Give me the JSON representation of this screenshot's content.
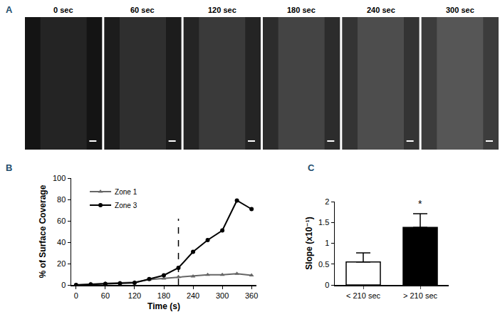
{
  "panel_labels": [
    "A",
    "B",
    "C"
  ],
  "image_panels": {
    "labels": [
      "0 sec",
      "60 sec",
      "120 sec",
      "180 sec",
      "240 sec",
      "300 sec"
    ]
  },
  "chart_data": [
    {
      "type": "line",
      "x_label": "Time (s)",
      "y_label": "% of Surface Coverage",
      "x": [
        0,
        30,
        60,
        90,
        120,
        150,
        180,
        210,
        240,
        270,
        300,
        330,
        360
      ],
      "series": [
        {
          "name": "Zone 1",
          "color": "#666666",
          "marker": "triangle-up",
          "line_style": "solid",
          "values": [
            0,
            1,
            1.5,
            2,
            2.5,
            5,
            6,
            7.5,
            8,
            9.5,
            9.5,
            10.5,
            9
          ]
        },
        {
          "name": "Zone 3",
          "color": "#000000",
          "marker": "circle",
          "line_style": "solid",
          "values": [
            0,
            0.5,
            1,
            1.5,
            2,
            5.5,
            9,
            16,
            31,
            42,
            51,
            79,
            71
          ]
        }
      ],
      "reference_line": {
        "x": 210,
        "ylim": [
          0,
          62
        ]
      },
      "xlim": [
        -10,
        370
      ],
      "xticks": [
        0,
        60,
        120,
        180,
        240,
        300,
        360
      ],
      "ylim": [
        0,
        100
      ],
      "yticks": [
        0,
        20,
        40,
        60,
        80,
        100
      ],
      "grid": false,
      "legend": "upper left"
    },
    {
      "type": "bar",
      "y_label": "Slope (x10⁻¹)",
      "categories": [
        "< 210 sec",
        "> 210 sec"
      ],
      "values": [
        0.55,
        1.38
      ],
      "errors": [
        0.22,
        0.33
      ],
      "colors": [
        "#ffffff",
        "#000000"
      ],
      "annotations": [
        {
          "text": "*",
          "category": "> 210 sec"
        }
      ],
      "ylim": [
        0,
        2
      ],
      "yticks": [
        0,
        0.5,
        1,
        1.5,
        2
      ],
      "grid": false
    }
  ]
}
